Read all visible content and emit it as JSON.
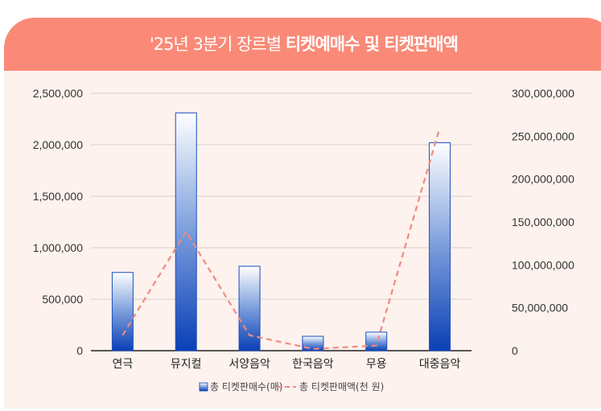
{
  "title_light": "'25년 3분기 장르별 ",
  "title_bold": "티켓예매수 및 티켓판매액",
  "chart_data": {
    "type": "bar",
    "categories": [
      "연극",
      "뮤지컬",
      "서양음악",
      "한국음악",
      "무용",
      "대중음악"
    ],
    "series": [
      {
        "name": "총 티켓판매수(매)",
        "type": "bar",
        "axis": "left",
        "values": [
          760000,
          2310000,
          820000,
          140000,
          180000,
          2020000
        ],
        "color": "#0a3fb5"
      },
      {
        "name": "총 티켓판매액(천 원)",
        "type": "line",
        "style": "dashed",
        "axis": "right",
        "values": [
          18000000,
          139000000,
          18000000,
          2000000,
          6000000,
          260000000
        ],
        "color": "#f08a80"
      }
    ],
    "yleft": {
      "ticks": [
        "0",
        "500,000",
        "1,000,000",
        "1,500,000",
        "2,000,000",
        "2,500,000"
      ],
      "ylim": [
        0,
        2500000
      ]
    },
    "yright": {
      "ticks": [
        "0",
        "50,000,000",
        "100,000,000",
        "150,000,000",
        "200,000,000",
        "250,000,000",
        "300,000,000"
      ],
      "ylim": [
        0,
        300000000
      ]
    },
    "grid": true,
    "legend": "bottom"
  }
}
